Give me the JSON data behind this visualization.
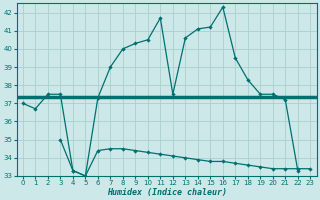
{
  "xlabel": "Humidex (Indice chaleur)",
  "background_color": "#cde8e8",
  "grid_color": "#aacfcf",
  "line_color": "#007070",
  "x_values": [
    0,
    1,
    2,
    3,
    4,
    5,
    6,
    7,
    8,
    9,
    10,
    11,
    12,
    13,
    14,
    15,
    16,
    17,
    18,
    19,
    20,
    21,
    22,
    23
  ],
  "series1": [
    37.0,
    36.7,
    37.5,
    37.5,
    33.3,
    33.0,
    37.3,
    39.0,
    40.0,
    40.3,
    40.5,
    41.7,
    37.5,
    40.6,
    41.1,
    41.2,
    42.3,
    39.5,
    38.3,
    37.5,
    37.5,
    37.2,
    33.3,
    null
  ],
  "series2": [
    null,
    null,
    null,
    35.0,
    33.3,
    33.0,
    34.4,
    34.5,
    34.5,
    34.4,
    34.3,
    34.2,
    34.1,
    34.0,
    33.9,
    33.8,
    33.8,
    33.7,
    33.6,
    33.5,
    33.4,
    33.4,
    33.4,
    33.4
  ],
  "series3_y": 37.35,
  "ylim": [
    33,
    42.5
  ],
  "xlim": [
    -0.5,
    23.5
  ],
  "yticks": [
    33,
    34,
    35,
    36,
    37,
    38,
    39,
    40,
    41,
    42
  ],
  "xticks": [
    0,
    1,
    2,
    3,
    4,
    5,
    6,
    7,
    8,
    9,
    10,
    11,
    12,
    13,
    14,
    15,
    16,
    17,
    18,
    19,
    20,
    21,
    22,
    23
  ]
}
